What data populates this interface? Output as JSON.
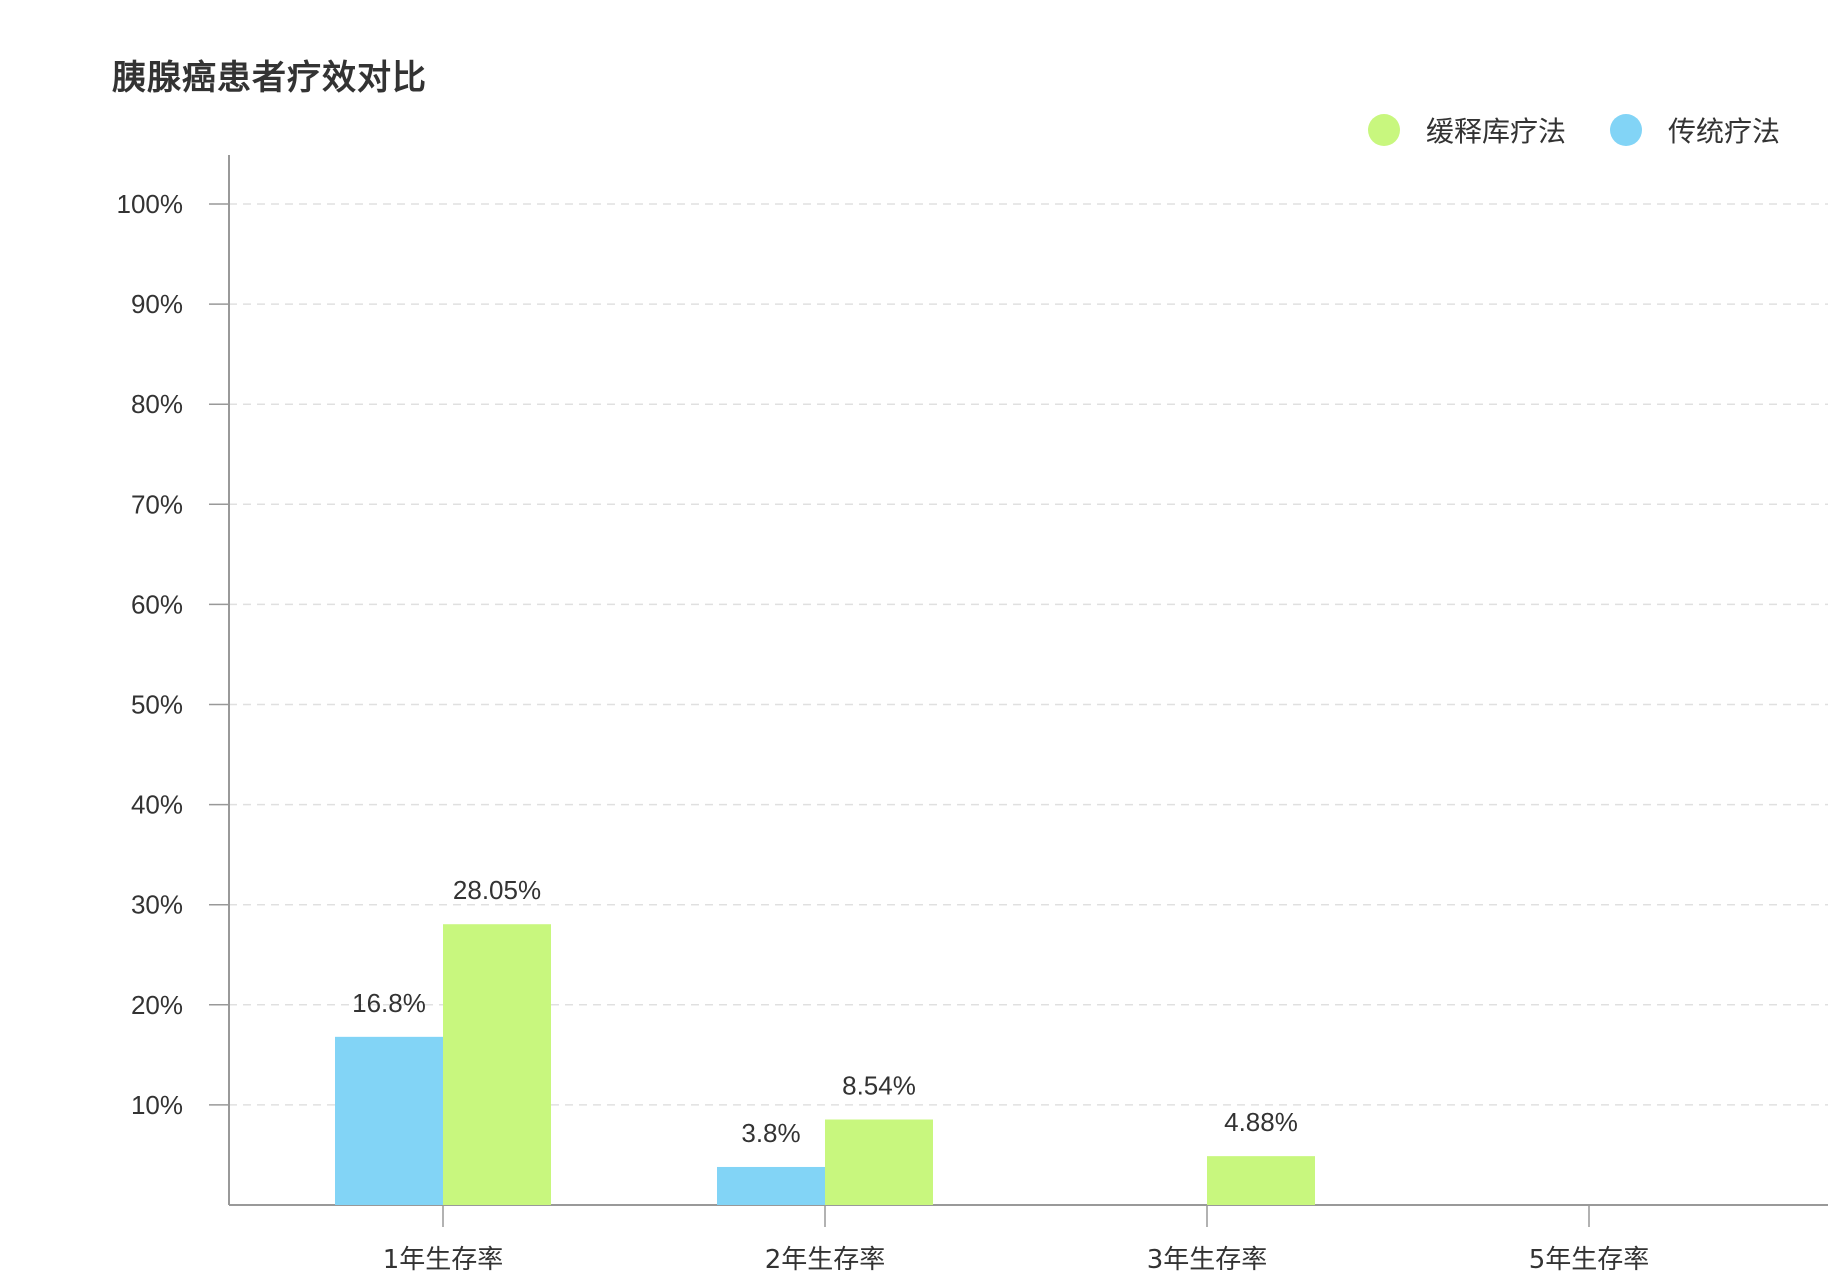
{
  "chart_data": {
    "type": "bar",
    "title": "胰腺癌患者疗效对比",
    "categories": [
      "1年生存率",
      "2年生存率",
      "3年生存率",
      "5年生存率"
    ],
    "series": [
      {
        "name": "传统疗法",
        "color": "#82d4f6",
        "values": [
          16.8,
          3.8,
          null,
          null
        ],
        "labels": [
          "16.8%",
          "3.8%",
          "",
          ""
        ]
      },
      {
        "name": "缓释库疗法",
        "color": "#c8f77e",
        "values": [
          28.05,
          8.54,
          4.88,
          null
        ],
        "labels": [
          "28.05%",
          "8.54%",
          "4.88%",
          ""
        ]
      }
    ],
    "legend_order": [
      1,
      0
    ],
    "legend_position": "top-right",
    "ylim": [
      0,
      100
    ],
    "y_ticks": [
      "10%",
      "20%",
      "30%",
      "40%",
      "50%",
      "60%",
      "70%",
      "80%",
      "90%",
      "100%"
    ],
    "grid": true
  }
}
